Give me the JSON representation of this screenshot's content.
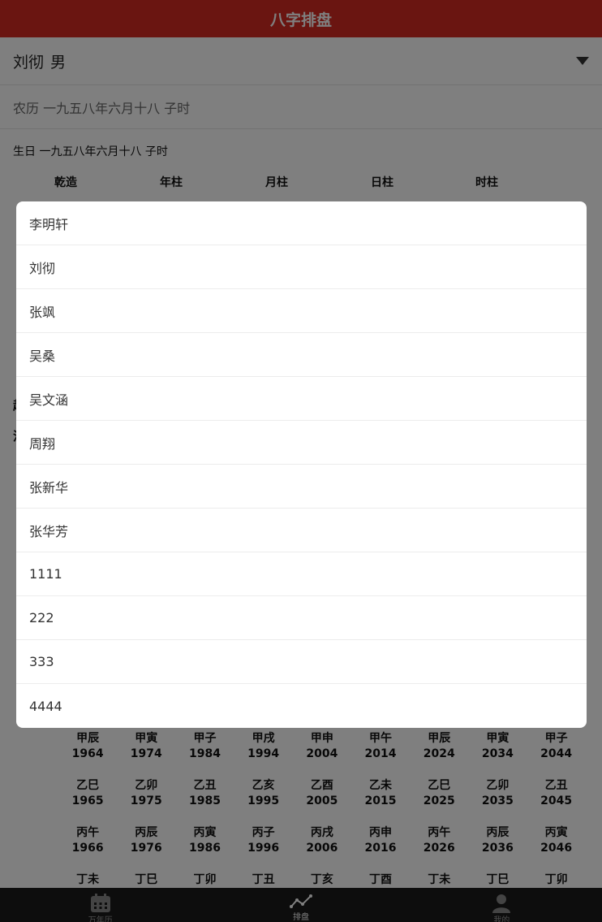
{
  "header": {
    "title": "八字排盘"
  },
  "selector": {
    "name": "刘彻",
    "sex": "男"
  },
  "lunar_row": {
    "text": "农历 一九五八年六月十八 子时"
  },
  "birth": {
    "text": "生日 一九五八年六月十八 子时"
  },
  "pillars": {
    "qianzao": "乾造",
    "year": "年柱",
    "month": "月柱",
    "day": "日柱",
    "hour": "时柱"
  },
  "obscured": {
    "label_1": "起",
    "label_2": "流"
  },
  "picker": {
    "items": [
      "李明轩",
      "刘彻",
      "张飒",
      "吴桑",
      "吴文涵",
      "周翔",
      "张新华",
      "张华芳",
      "1111",
      "222",
      "333",
      "4444"
    ]
  },
  "year_rows": [
    [
      {
        "gz": "甲辰",
        "y": "1964"
      },
      {
        "gz": "甲寅",
        "y": "1974"
      },
      {
        "gz": "甲子",
        "y": "1984"
      },
      {
        "gz": "甲戌",
        "y": "1994"
      },
      {
        "gz": "甲申",
        "y": "2004"
      },
      {
        "gz": "甲午",
        "y": "2014"
      },
      {
        "gz": "甲辰",
        "y": "2024"
      },
      {
        "gz": "甲寅",
        "y": "2034"
      },
      {
        "gz": "甲子",
        "y": "2044"
      }
    ],
    [
      {
        "gz": "乙巳",
        "y": "1965"
      },
      {
        "gz": "乙卯",
        "y": "1975"
      },
      {
        "gz": "乙丑",
        "y": "1985"
      },
      {
        "gz": "乙亥",
        "y": "1995"
      },
      {
        "gz": "乙酉",
        "y": "2005"
      },
      {
        "gz": "乙未",
        "y": "2015"
      },
      {
        "gz": "乙巳",
        "y": "2025"
      },
      {
        "gz": "乙卯",
        "y": "2035"
      },
      {
        "gz": "乙丑",
        "y": "2045"
      }
    ],
    [
      {
        "gz": "丙午",
        "y": "1966"
      },
      {
        "gz": "丙辰",
        "y": "1976"
      },
      {
        "gz": "丙寅",
        "y": "1986"
      },
      {
        "gz": "丙子",
        "y": "1996"
      },
      {
        "gz": "丙戌",
        "y": "2006"
      },
      {
        "gz": "丙申",
        "y": "2016"
      },
      {
        "gz": "丙午",
        "y": "2026"
      },
      {
        "gz": "丙辰",
        "y": "2036"
      },
      {
        "gz": "丙寅",
        "y": "2046"
      }
    ],
    [
      {
        "gz": "丁未",
        "y": ""
      },
      {
        "gz": "丁巳",
        "y": ""
      },
      {
        "gz": "丁卯",
        "y": ""
      },
      {
        "gz": "丁丑",
        "y": ""
      },
      {
        "gz": "丁亥",
        "y": ""
      },
      {
        "gz": "丁酉",
        "y": ""
      },
      {
        "gz": "丁未",
        "y": ""
      },
      {
        "gz": "丁巳",
        "y": ""
      },
      {
        "gz": "丁卯",
        "y": ""
      }
    ]
  ],
  "tabs": [
    {
      "label": "万年历",
      "icon": "calendar-icon"
    },
    {
      "label": "排盘",
      "icon": "chart-line-icon"
    },
    {
      "label": "我的",
      "icon": "user-icon"
    }
  ],
  "colors": {
    "header": "#d42a22",
    "tabbar": "#1b1b1b",
    "mask": "rgba(0,0,0,0.5)"
  }
}
